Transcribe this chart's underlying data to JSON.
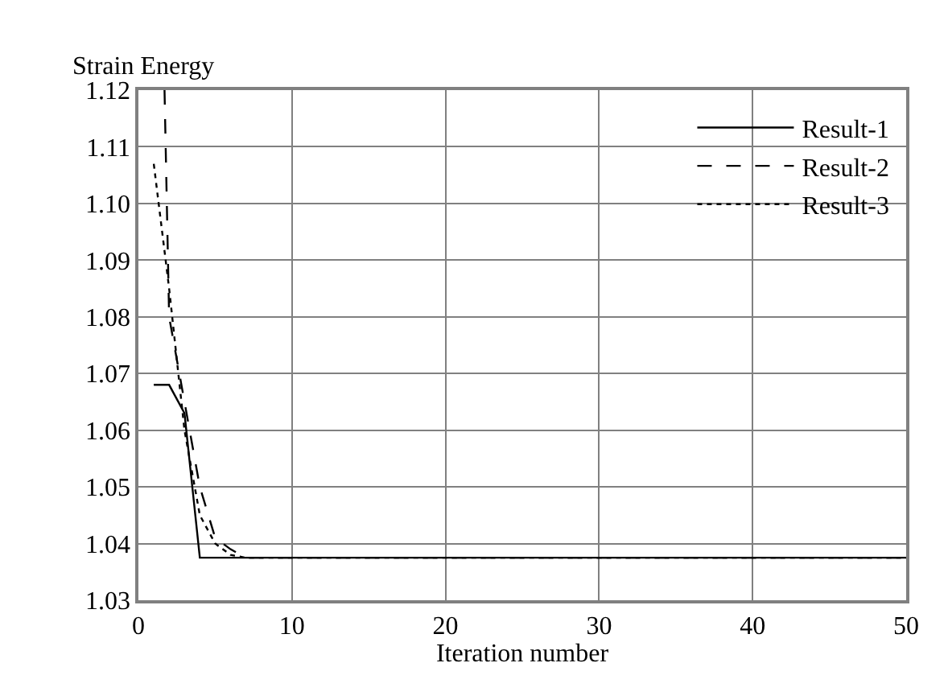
{
  "chart_data": {
    "type": "line",
    "xlabel": "Iteration number",
    "ylabel": "Strain Energy",
    "xlim": [
      0,
      50
    ],
    "xticks": [
      0,
      10,
      20,
      30,
      40,
      50
    ],
    "ylim": [
      1.03,
      1.12
    ],
    "yticks": [
      {
        "value": 1.03,
        "label": "1.03"
      },
      {
        "value": 1.04,
        "label": "1.04"
      },
      {
        "value": 1.05,
        "label": "1.05"
      },
      {
        "value": 1.06,
        "label": "1.06"
      },
      {
        "value": 1.07,
        "label": "1.07"
      },
      {
        "value": 1.08,
        "label": "1.08"
      },
      {
        "value": 1.09,
        "label": "1.09"
      },
      {
        "value": 1.1,
        "label": "1.10"
      },
      {
        "value": 1.11,
        "label": "1.11"
      },
      {
        "value": 1.12,
        "label": "1.12"
      }
    ],
    "grid": true,
    "legend": "top right",
    "marker": "none",
    "series": [
      {
        "name": "Result-1",
        "color": "#000000",
        "line_style": "solid",
        "x": [
          1,
          2,
          3,
          4,
          50
        ],
        "values": [
          1.068,
          1.068,
          1.063,
          1.0375,
          1.0375
        ]
      },
      {
        "name": "Result-2",
        "color": "#000000",
        "line_style": "dashed",
        "x": [
          1.7,
          2,
          3,
          4,
          5,
          6,
          7,
          50
        ],
        "values": [
          1.12,
          1.08,
          1.065,
          1.05,
          1.041,
          1.039,
          1.0375,
          1.0375
        ]
      },
      {
        "name": "Result-3",
        "color": "#000000",
        "line_style": "dotted",
        "x": [
          1,
          2,
          3,
          4,
          5,
          6,
          7,
          50
        ],
        "values": [
          1.107,
          1.085,
          1.06,
          1.045,
          1.04,
          1.038,
          1.0375,
          1.0375
        ]
      }
    ]
  }
}
